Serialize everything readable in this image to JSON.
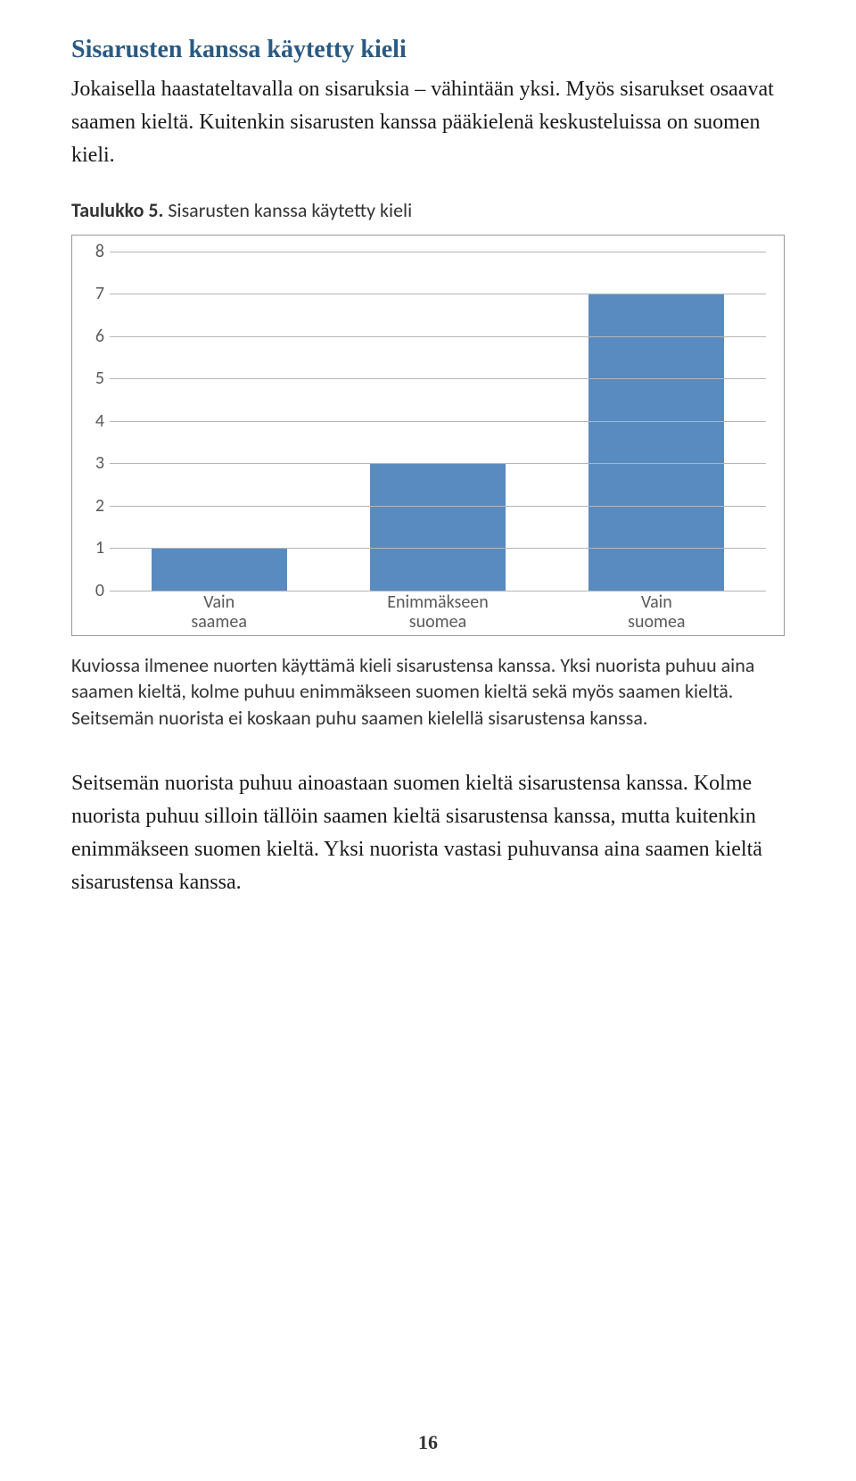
{
  "heading_color": "#2a5a82",
  "heading_text": "Sisarusten kanssa käytetty kieli",
  "intro_paragraph": "Jokaisella haastateltavalla on sisaruksia – vähintään yksi. Myös sisarukset osaavat saamen kieltä. Kuitenkin sisarusten kanssa pääkielenä keskusteluissa on suomen kieli.",
  "chart_caption_bold": "Taulukko 5.",
  "chart_caption_rest": " Sisarusten kanssa käytetty kieli",
  "chart": {
    "type": "bar",
    "categories": [
      "Vain saamea",
      "Enimmäkseen suomea",
      "Vain suomea"
    ],
    "values": [
      1,
      3,
      7
    ],
    "bar_color": "#5a8bc0",
    "ylim": [
      0,
      8
    ],
    "ytick_step": 1,
    "grid_color": "#b5b5b5",
    "background_color": "#ffffff",
    "border_color": "#9a9a9a",
    "bar_width": 0.62,
    "label_fontsize": 20,
    "label_color": "#5a5a5a",
    "font_family": "Calibri, Arial, sans-serif"
  },
  "figure_description": "Kuviossa ilmenee nuorten käyttämä kieli sisarustensa kanssa. Yksi nuorista puhuu aina saamen kieltä, kolme puhuu enimmäkseen suomen kieltä sekä myös saamen kieltä. Seitsemän nuorista ei koskaan puhu saamen kielellä sisarustensa kanssa.",
  "conclusion_paragraph": "Seitsemän nuorista puhuu ainoastaan suomen kieltä sisarustensa kanssa. Kolme nuorista puhuu silloin tällöin saamen kieltä sisarustensa kanssa, mutta kuitenkin enimmäkseen suomen kieltä. Yksi nuorista vastasi puhuvansa aina saamen kieltä sisarustensa kanssa.",
  "page_number": "16"
}
